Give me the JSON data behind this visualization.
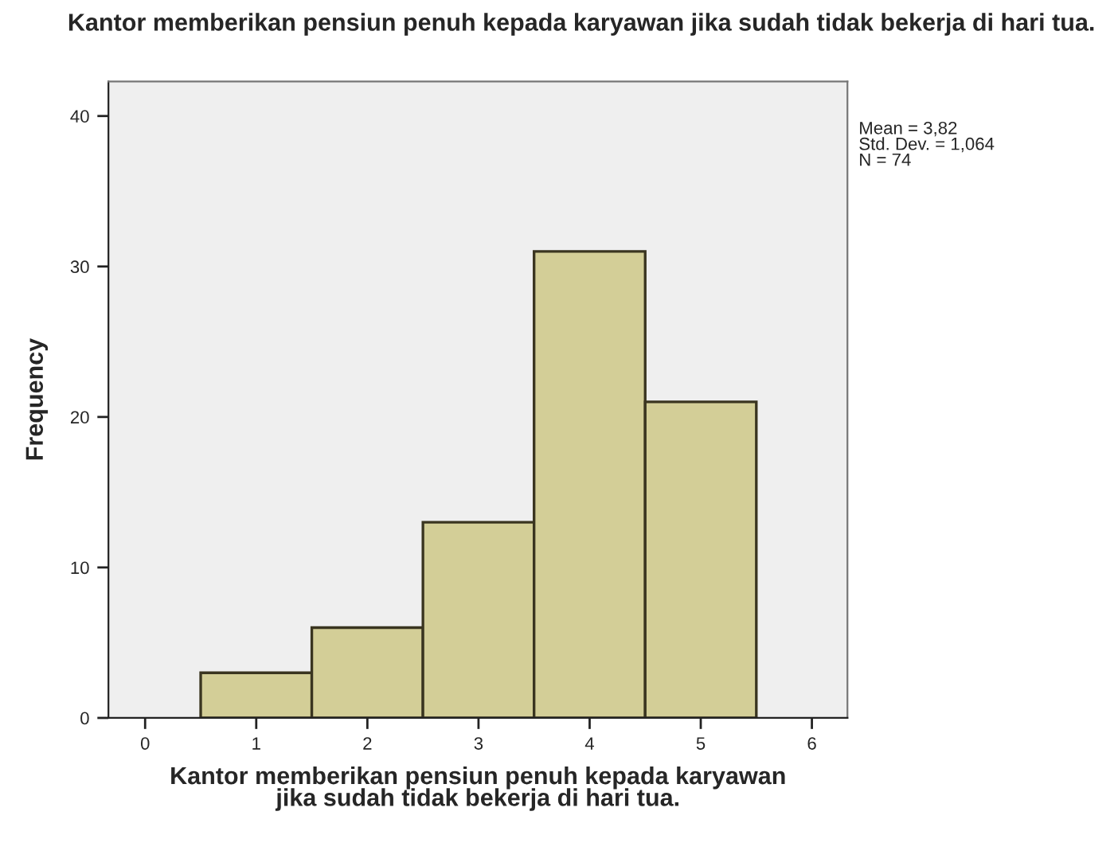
{
  "chart_data": {
    "type": "histogram",
    "title": "Kantor memberikan pensiun penuh kepada karyawan jika sudah tidak bekerja di hari tua.",
    "xlabel": "Kantor memberikan pensiun penuh kepada karyawan\njika sudah tidak bekerja di hari tua.",
    "ylabel": "Frequency",
    "bins": [
      0.5,
      1.5,
      2.5,
      3.5,
      4.5,
      5.5
    ],
    "values": [
      3,
      6,
      13,
      31,
      21
    ],
    "color": "#d3ce97",
    "xlim": [
      -0.33,
      6.32
    ],
    "xticks": [
      0,
      1,
      2,
      3,
      4,
      5,
      6
    ],
    "ylim": [
      0,
      42.3
    ],
    "yticks": [
      0,
      10,
      20,
      30,
      40
    ],
    "grid": false,
    "annotations": [
      "Mean = 3,82\nStd. Dev. = 1,064\nN = 74"
    ]
  }
}
